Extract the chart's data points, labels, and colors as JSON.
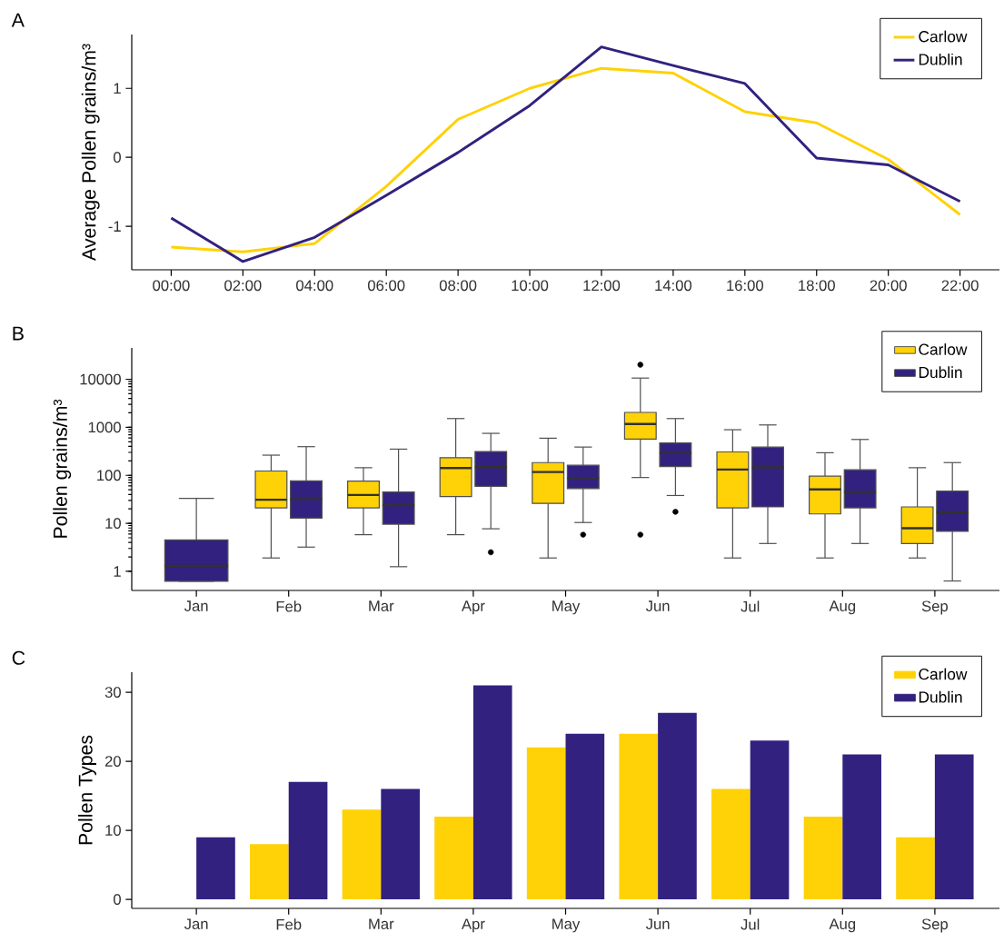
{
  "chart_data": [
    {
      "type": "line",
      "title": "A",
      "ylabel": "Average Pollen grains/m³",
      "x": [
        0,
        2,
        4,
        6,
        8,
        10,
        12,
        14,
        16,
        18,
        20,
        22
      ],
      "xlim": [
        -1.1,
        23.1
      ],
      "xticks": [
        {
          "value": 0,
          "label": "00:00"
        },
        {
          "value": 2,
          "label": "02:00"
        },
        {
          "value": 4,
          "label": "04:00"
        },
        {
          "value": 6,
          "label": "06:00"
        },
        {
          "value": 8,
          "label": "08:00"
        },
        {
          "value": 10,
          "label": "10:00"
        },
        {
          "value": 12,
          "label": "12:00"
        },
        {
          "value": 14,
          "label": "14:00"
        },
        {
          "value": 16,
          "label": "16:00"
        },
        {
          "value": 18,
          "label": "18:00"
        },
        {
          "value": 20,
          "label": "20:00"
        },
        {
          "value": 22,
          "label": "22:00"
        }
      ],
      "ylim": [
        -1.63,
        1.78
      ],
      "yticks": [
        -1,
        0,
        1
      ],
      "legend": "top right",
      "series": [
        {
          "name": "Carlow",
          "color": "#fed206",
          "values": [
            -1.3,
            -1.37,
            -1.25,
            -0.42,
            0.55,
            1.0,
            1.29,
            1.22,
            0.66,
            0.5,
            -0.03,
            -0.83
          ]
        },
        {
          "name": "Dublin",
          "color": "#32217f",
          "values": [
            -0.88,
            -1.51,
            -1.16,
            -0.55,
            0.07,
            0.75,
            1.6,
            1.33,
            1.07,
            -0.01,
            -0.11,
            -0.64
          ]
        }
      ]
    },
    {
      "type": "box",
      "title": "B",
      "ylabel": "Pollen grains/m³",
      "log": true,
      "categories": [
        "Jan",
        "Feb",
        "Mar",
        "Apr",
        "May",
        "Jun",
        "Jul",
        "Aug",
        "Sep"
      ],
      "ylim": [
        0.4,
        45000
      ],
      "yticks": [
        1,
        10,
        100,
        1000,
        10000
      ],
      "legend": "top right",
      "series": [
        {
          "name": "Carlow",
          "color": "#fed206",
          "boxes": [
            null,
            {
              "low": 1.9,
              "q1": 21,
              "median": 31,
              "q3": 123,
              "high": 263
            },
            {
              "low": 5.8,
              "q1": 21,
              "median": 39,
              "q3": 76,
              "high": 144
            },
            {
              "low": 5.8,
              "q1": 36,
              "median": 142,
              "q3": 233,
              "high": 1520
            },
            {
              "low": 1.9,
              "q1": 26,
              "median": 117,
              "q3": 184,
              "high": 593
            },
            {
              "low": 90,
              "q1": 567,
              "median": 1175,
              "q3": 2040,
              "high": 10600,
              "outliers": [
                20100,
                5.8
              ]
            },
            {
              "low": 1.9,
              "q1": 21,
              "median": 132,
              "q3": 307,
              "high": 890
            },
            {
              "low": 1.9,
              "q1": 15.7,
              "median": 51,
              "q3": 96,
              "high": 295
            },
            {
              "low": 1.9,
              "q1": 3.8,
              "median": 7.9,
              "q3": 22,
              "high": 144
            }
          ]
        },
        {
          "name": "Dublin",
          "color": "#32217f",
          "boxes": [
            {
              "low": 0.62,
              "q1": 0.62,
              "median": 1.3,
              "q3": 4.5,
              "high": 33
            },
            {
              "low": 3.2,
              "q1": 12.8,
              "median": 32,
              "q3": 77,
              "high": 395
            },
            {
              "low": 1.25,
              "q1": 9.6,
              "median": 24,
              "q3": 45,
              "high": 351
            },
            {
              "low": 7.7,
              "q1": 59,
              "median": 148,
              "q3": 312,
              "high": 748,
              "outliers": [
                2.5
              ]
            },
            {
              "low": 10.4,
              "q1": 53,
              "median": 88,
              "q3": 162,
              "high": 388,
              "outliers": [
                5.8
              ]
            },
            {
              "low": 38,
              "q1": 152,
              "median": 290,
              "q3": 470,
              "high": 1520,
              "outliers": [
                17.4
              ]
            },
            {
              "low": 3.8,
              "q1": 22,
              "median": 146,
              "q3": 388,
              "high": 1120
            },
            {
              "low": 3.8,
              "q1": 21,
              "median": 45,
              "q3": 130,
              "high": 558
            },
            {
              "low": 0.63,
              "q1": 6.8,
              "median": 17,
              "q3": 47,
              "high": 184
            }
          ]
        }
      ]
    },
    {
      "type": "bar",
      "title": "C",
      "ylabel": "Pollen Types",
      "categories": [
        "Jan",
        "Feb",
        "Mar",
        "Apr",
        "May",
        "Jun",
        "Jul",
        "Aug",
        "Sep"
      ],
      "ylim": [
        -1.3,
        32.9
      ],
      "yticks": [
        0,
        10,
        20,
        30
      ],
      "legend": "top right",
      "series": [
        {
          "name": "Carlow",
          "color": "#fed206",
          "values": [
            null,
            8,
            13,
            12,
            22,
            24,
            16,
            12,
            9
          ]
        },
        {
          "name": "Dublin",
          "color": "#32217f",
          "values": [
            9,
            17,
            16,
            31,
            24,
            27,
            23,
            21,
            21
          ]
        }
      ]
    }
  ]
}
